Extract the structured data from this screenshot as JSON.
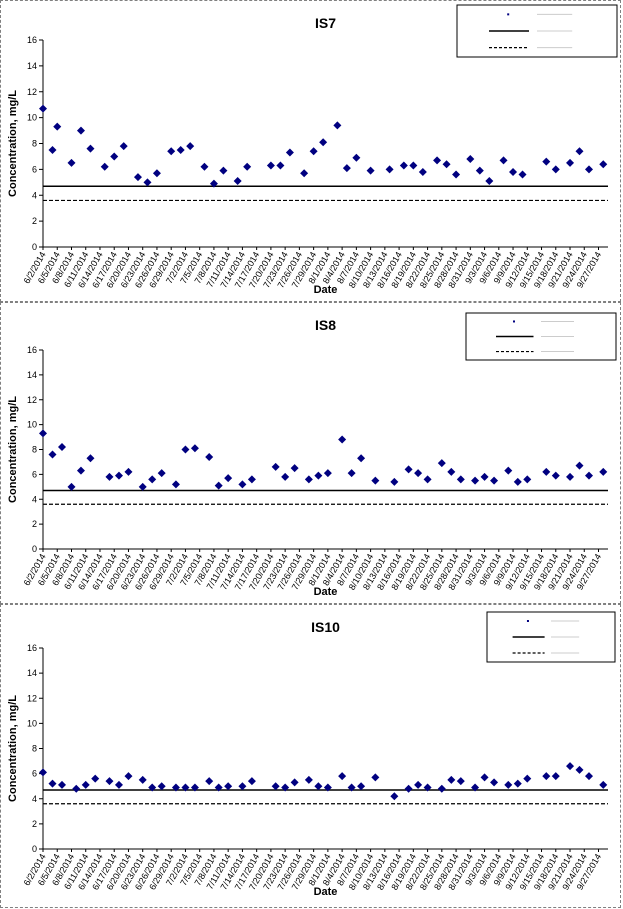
{
  "chart_data": [
    {
      "type": "scatter",
      "title": "IS7",
      "xlabel": "Date",
      "ylabel": "Concentration, mg/L",
      "ylim": [
        0,
        16
      ],
      "yticks": [
        0,
        2,
        4,
        6,
        8,
        10,
        12,
        14,
        16
      ],
      "xlim": [
        "2014-06-02",
        "2014-09-29"
      ],
      "xtick_labels": [
        "6/2/2014",
        "6/5/2014",
        "6/8/2014",
        "6/11/2014",
        "6/14/2014",
        "6/17/2014",
        "6/20/2014",
        "6/23/2014",
        "6/26/2014",
        "6/29/2014",
        "7/2/2014",
        "7/5/2014",
        "7/8/2014",
        "7/11/2014",
        "7/14/2014",
        "7/17/2014",
        "7/20/2014",
        "7/23/2014",
        "7/26/2014",
        "7/29/2014",
        "8/1/2014",
        "8/4/2014",
        "8/7/2014",
        "8/10/2014",
        "8/13/2014",
        "8/16/2014",
        "8/19/2014",
        "8/22/2014",
        "8/25/2014",
        "8/28/2014",
        "8/31/2014",
        "9/3/2014",
        "9/6/2014",
        "9/9/2014",
        "9/12/2014",
        "9/15/2014",
        "9/18/2014",
        "9/21/2014",
        "9/24/2014",
        "9/27/2014"
      ],
      "legend_position": "top-right",
      "grid": false,
      "series": [
        {
          "marker_color": "#000080",
          "x": [
            "2014-06-02",
            "2014-06-04",
            "2014-06-05",
            "2014-06-08",
            "2014-06-10",
            "2014-06-12",
            "2014-06-15",
            "2014-06-17",
            "2014-06-19",
            "2014-06-22",
            "2014-06-24",
            "2014-06-26",
            "2014-06-29",
            "2014-07-01",
            "2014-07-03",
            "2014-07-06",
            "2014-07-08",
            "2014-07-10",
            "2014-07-13",
            "2014-07-15",
            "2014-07-20",
            "2014-07-22",
            "2014-07-24",
            "2014-07-27",
            "2014-07-29",
            "2014-07-31",
            "2014-08-03",
            "2014-08-05",
            "2014-08-07",
            "2014-08-10",
            "2014-08-14",
            "2014-08-17",
            "2014-08-19",
            "2014-08-21",
            "2014-08-24",
            "2014-08-26",
            "2014-08-28",
            "2014-08-31",
            "2014-09-02",
            "2014-09-04",
            "2014-09-07",
            "2014-09-09",
            "2014-09-11",
            "2014-09-16",
            "2014-09-18",
            "2014-09-21",
            "2014-09-23",
            "2014-09-25",
            "2014-09-28"
          ],
          "y": [
            10.7,
            7.5,
            9.3,
            6.5,
            9.0,
            7.6,
            6.2,
            7.0,
            7.8,
            5.4,
            5.0,
            5.7,
            7.4,
            7.5,
            7.8,
            6.2,
            4.9,
            5.9,
            5.1,
            6.2,
            6.3,
            6.3,
            7.3,
            5.7,
            7.4,
            8.1,
            9.4,
            6.1,
            6.9,
            5.9,
            6.0,
            6.3,
            6.3,
            5.8,
            6.7,
            6.4,
            5.6,
            6.8,
            5.9,
            5.1,
            6.7,
            5.8,
            5.6,
            6.6,
            6.0,
            6.5,
            7.4,
            6.0,
            6.4
          ]
        }
      ],
      "reference_lines": [
        {
          "style": "solid",
          "value": 4.7
        },
        {
          "style": "dashed",
          "value": 3.6
        }
      ]
    },
    {
      "type": "scatter",
      "title": "IS8",
      "xlabel": "Date",
      "ylabel": "Concentration, mg/L",
      "ylim": [
        0,
        16
      ],
      "yticks": [
        0,
        2,
        4,
        6,
        8,
        10,
        12,
        14,
        16
      ],
      "xlim": [
        "2014-06-02",
        "2014-09-29"
      ],
      "xtick_labels": [
        "6/2/2014",
        "6/5/2014",
        "6/8/2014",
        "6/11/2014",
        "6/14/2014",
        "6/17/2014",
        "6/20/2014",
        "6/23/2014",
        "6/26/2014",
        "6/29/2014",
        "7/2/2014",
        "7/5/2014",
        "7/8/2014",
        "7/11/2014",
        "7/14/2014",
        "7/17/2014",
        "7/20/2014",
        "7/23/2014",
        "7/26/2014",
        "7/29/2014",
        "8/1/2014",
        "8/4/2014",
        "8/7/2014",
        "8/10/2014",
        "8/13/2014",
        "8/16/2014",
        "8/19/2014",
        "8/22/2014",
        "8/25/2014",
        "8/28/2014",
        "8/31/2014",
        "9/3/2014",
        "9/6/2014",
        "9/9/2014",
        "9/12/2014",
        "9/15/2014",
        "9/18/2014",
        "9/21/2014",
        "9/24/2014",
        "9/27/2014"
      ],
      "legend_position": "top-right",
      "grid": false,
      "series": [
        {
          "marker_color": "#000080",
          "x": [
            "2014-06-02",
            "2014-06-04",
            "2014-06-06",
            "2014-06-08",
            "2014-06-10",
            "2014-06-12",
            "2014-06-16",
            "2014-06-18",
            "2014-06-20",
            "2014-06-23",
            "2014-06-25",
            "2014-06-27",
            "2014-06-30",
            "2014-07-02",
            "2014-07-04",
            "2014-07-07",
            "2014-07-09",
            "2014-07-11",
            "2014-07-14",
            "2014-07-16",
            "2014-07-21",
            "2014-07-23",
            "2014-07-25",
            "2014-07-28",
            "2014-07-30",
            "2014-08-01",
            "2014-08-04",
            "2014-08-06",
            "2014-08-08",
            "2014-08-11",
            "2014-08-15",
            "2014-08-18",
            "2014-08-20",
            "2014-08-22",
            "2014-08-25",
            "2014-08-27",
            "2014-08-29",
            "2014-09-01",
            "2014-09-03",
            "2014-09-05",
            "2014-09-08",
            "2014-09-10",
            "2014-09-12",
            "2014-09-16",
            "2014-09-18",
            "2014-09-21",
            "2014-09-23",
            "2014-09-25",
            "2014-09-28"
          ],
          "y": [
            9.3,
            7.6,
            8.2,
            5.0,
            6.3,
            7.3,
            5.8,
            5.9,
            6.2,
            5.0,
            5.6,
            6.1,
            5.2,
            8.0,
            8.1,
            7.4,
            5.1,
            5.7,
            5.2,
            5.6,
            6.6,
            5.8,
            6.5,
            5.6,
            5.9,
            6.1,
            8.8,
            6.1,
            7.3,
            5.5,
            5.4,
            6.4,
            6.1,
            5.6,
            6.9,
            6.2,
            5.6,
            5.5,
            5.8,
            5.5,
            6.3,
            5.4,
            5.6,
            6.2,
            5.9,
            5.8,
            6.7,
            5.9,
            6.2
          ]
        }
      ],
      "reference_lines": [
        {
          "style": "solid",
          "value": 4.7
        },
        {
          "style": "dashed",
          "value": 3.6
        }
      ]
    },
    {
      "type": "scatter",
      "title": "IS10",
      "xlabel": "Date",
      "ylabel": "Concentration, mg/L",
      "ylim": [
        0,
        16
      ],
      "yticks": [
        0,
        2,
        4,
        6,
        8,
        10,
        12,
        14,
        16
      ],
      "xlim": [
        "2014-06-02",
        "2014-09-29"
      ],
      "xtick_labels": [
        "6/2/2014",
        "6/5/2014",
        "6/8/2014",
        "6/11/2014",
        "6/14/2014",
        "6/17/2014",
        "6/20/2014",
        "6/23/2014",
        "6/26/2014",
        "6/29/2014",
        "7/2/2014",
        "7/5/2014",
        "7/8/2014",
        "7/11/2014",
        "7/14/2014",
        "7/17/2014",
        "7/20/2014",
        "7/23/2014",
        "7/26/2014",
        "7/29/2014",
        "8/1/2014",
        "8/4/2014",
        "8/7/2014",
        "8/10/2014",
        "8/13/2014",
        "8/16/2014",
        "8/19/2014",
        "8/22/2014",
        "8/25/2014",
        "8/28/2014",
        "8/31/2014",
        "9/3/2014",
        "9/6/2014",
        "9/9/2014",
        "9/12/2014",
        "9/15/2014",
        "9/18/2014",
        "9/21/2014",
        "9/24/2014",
        "9/27/2014"
      ],
      "legend_position": "top-right",
      "grid": false,
      "series": [
        {
          "marker_color": "#000080",
          "x": [
            "2014-06-02",
            "2014-06-04",
            "2014-06-06",
            "2014-06-09",
            "2014-06-11",
            "2014-06-13",
            "2014-06-16",
            "2014-06-18",
            "2014-06-20",
            "2014-06-23",
            "2014-06-25",
            "2014-06-27",
            "2014-06-30",
            "2014-07-02",
            "2014-07-04",
            "2014-07-07",
            "2014-07-09",
            "2014-07-11",
            "2014-07-14",
            "2014-07-16",
            "2014-07-21",
            "2014-07-23",
            "2014-07-25",
            "2014-07-28",
            "2014-07-30",
            "2014-08-01",
            "2014-08-04",
            "2014-08-06",
            "2014-08-08",
            "2014-08-11",
            "2014-08-15",
            "2014-08-18",
            "2014-08-20",
            "2014-08-22",
            "2014-08-25",
            "2014-08-27",
            "2014-08-29",
            "2014-09-01",
            "2014-09-03",
            "2014-09-05",
            "2014-09-08",
            "2014-09-10",
            "2014-09-12",
            "2014-09-16",
            "2014-09-18",
            "2014-09-21",
            "2014-09-23",
            "2014-09-25",
            "2014-09-28"
          ],
          "y": [
            6.1,
            5.2,
            5.1,
            4.8,
            5.1,
            5.6,
            5.4,
            5.1,
            5.8,
            5.5,
            4.9,
            5.0,
            4.9,
            4.9,
            4.9,
            5.4,
            4.9,
            5.0,
            5.0,
            5.4,
            5.0,
            4.9,
            5.3,
            5.5,
            5.0,
            4.9,
            5.8,
            4.9,
            5.0,
            5.7,
            4.2,
            4.8,
            5.1,
            4.9,
            4.8,
            5.5,
            5.4,
            4.9,
            5.7,
            5.3,
            5.1,
            5.2,
            5.6,
            5.8,
            5.8,
            6.6,
            6.3,
            5.8,
            5.1
          ]
        }
      ],
      "reference_lines": [
        {
          "style": "solid",
          "value": 4.7
        },
        {
          "style": "dashed",
          "value": 3.6
        }
      ]
    }
  ]
}
